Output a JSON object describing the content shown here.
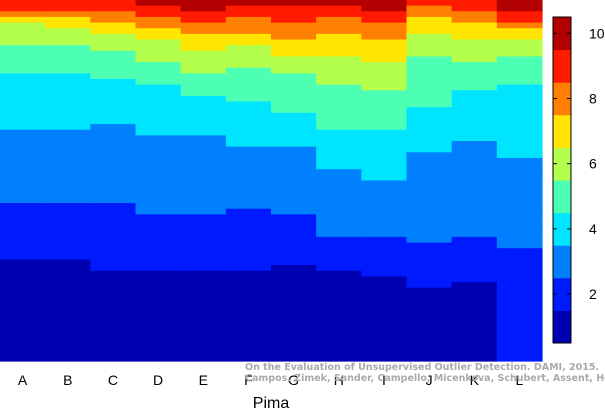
{
  "chart_data": {
    "type": "heatmap",
    "title": "",
    "xlabel": "Pima",
    "ylabel": "",
    "categories": [
      "A",
      "B",
      "C",
      "D",
      "E",
      "F",
      "G",
      "H",
      "I",
      "J",
      "K",
      "L"
    ],
    "colorbar": {
      "min": 0.5,
      "max": 10.5,
      "ticks": [
        2,
        4,
        6,
        8,
        10
      ],
      "colormap": "jet"
    },
    "rows": 64,
    "columns": [
      [
        9,
        9,
        8,
        7,
        6,
        6,
        6,
        6,
        5,
        5,
        5,
        5,
        5,
        4,
        4,
        4,
        4,
        4,
        4,
        4,
        4,
        4,
        4,
        3,
        3,
        3,
        3,
        3,
        3,
        3,
        3,
        3,
        3,
        3,
        3,
        3,
        2,
        2,
        2,
        2,
        2,
        2,
        2,
        2,
        2,
        2,
        1,
        1,
        1,
        1,
        1,
        1,
        1,
        1,
        1,
        1,
        1,
        1,
        1,
        1,
        1,
        1,
        1,
        1
      ],
      [
        9,
        9,
        8,
        7,
        7,
        6,
        6,
        6,
        5,
        5,
        5,
        5,
        5,
        4,
        4,
        4,
        4,
        4,
        4,
        4,
        4,
        4,
        4,
        3,
        3,
        3,
        3,
        3,
        3,
        3,
        3,
        3,
        3,
        3,
        3,
        3,
        2,
        2,
        2,
        2,
        2,
        2,
        2,
        2,
        2,
        2,
        1,
        1,
        1,
        1,
        1,
        1,
        1,
        1,
        1,
        1,
        1,
        1,
        1,
        1,
        1,
        1,
        1,
        1
      ],
      [
        9,
        9,
        8,
        8,
        7,
        7,
        6,
        6,
        6,
        5,
        5,
        5,
        5,
        5,
        4,
        4,
        4,
        4,
        4,
        4,
        4,
        4,
        3,
        3,
        3,
        3,
        3,
        3,
        3,
        3,
        3,
        3,
        3,
        3,
        3,
        3,
        2,
        2,
        2,
        2,
        2,
        2,
        2,
        2,
        2,
        2,
        2,
        2,
        1,
        1,
        1,
        1,
        1,
        1,
        1,
        1,
        1,
        1,
        1,
        1,
        1,
        1,
        1,
        1
      ],
      [
        10,
        9,
        9,
        8,
        8,
        7,
        7,
        6,
        6,
        6,
        6,
        5,
        5,
        5,
        5,
        4,
        4,
        4,
        4,
        4,
        4,
        4,
        4,
        4,
        3,
        3,
        3,
        3,
        3,
        3,
        3,
        3,
        3,
        3,
        3,
        3,
        3,
        3,
        2,
        2,
        2,
        2,
        2,
        2,
        2,
        2,
        2,
        2,
        1,
        1,
        1,
        1,
        1,
        1,
        1,
        1,
        1,
        1,
        1,
        1,
        1,
        1,
        1,
        1
      ],
      [
        10,
        10,
        9,
        9,
        8,
        8,
        7,
        7,
        7,
        6,
        6,
        6,
        6,
        5,
        5,
        5,
        5,
        4,
        4,
        4,
        4,
        4,
        4,
        4,
        3,
        3,
        3,
        3,
        3,
        3,
        3,
        3,
        3,
        3,
        3,
        3,
        3,
        3,
        2,
        2,
        2,
        2,
        2,
        2,
        2,
        2,
        2,
        2,
        1,
        1,
        1,
        1,
        1,
        1,
        1,
        1,
        1,
        1,
        1,
        1,
        1,
        1,
        1,
        1
      ],
      [
        10,
        9,
        9,
        8,
        8,
        8,
        7,
        7,
        6,
        6,
        6,
        6,
        5,
        5,
        5,
        5,
        5,
        5,
        4,
        4,
        4,
        4,
        4,
        4,
        4,
        4,
        3,
        3,
        3,
        3,
        3,
        3,
        3,
        3,
        3,
        3,
        3,
        2,
        2,
        2,
        2,
        2,
        2,
        2,
        2,
        2,
        2,
        2,
        1,
        1,
        1,
        1,
        1,
        1,
        1,
        1,
        1,
        1,
        1,
        1,
        1,
        1,
        1,
        1
      ],
      [
        10,
        9,
        9,
        9,
        8,
        8,
        8,
        7,
        7,
        7,
        6,
        6,
        6,
        5,
        5,
        5,
        5,
        5,
        5,
        5,
        4,
        4,
        4,
        4,
        4,
        4,
        3,
        3,
        3,
        3,
        3,
        3,
        3,
        3,
        3,
        3,
        3,
        3,
        2,
        2,
        2,
        2,
        2,
        2,
        2,
        2,
        2,
        1,
        1,
        1,
        1,
        1,
        1,
        1,
        1,
        1,
        1,
        1,
        1,
        1,
        1,
        1,
        1,
        1
      ],
      [
        10,
        9,
        9,
        8,
        8,
        8,
        7,
        7,
        7,
        7,
        6,
        6,
        6,
        6,
        6,
        5,
        5,
        5,
        5,
        5,
        5,
        5,
        5,
        4,
        4,
        4,
        4,
        4,
        4,
        4,
        3,
        3,
        3,
        3,
        3,
        3,
        3,
        3,
        3,
        3,
        3,
        3,
        2,
        2,
        2,
        2,
        2,
        2,
        1,
        1,
        1,
        1,
        1,
        1,
        1,
        1,
        1,
        1,
        1,
        1,
        1,
        1,
        1,
        1
      ],
      [
        10,
        10,
        9,
        9,
        8,
        8,
        8,
        7,
        7,
        7,
        7,
        6,
        6,
        6,
        6,
        6,
        5,
        5,
        5,
        5,
        5,
        5,
        5,
        4,
        4,
        4,
        4,
        4,
        4,
        4,
        4,
        4,
        3,
        3,
        3,
        3,
        3,
        3,
        3,
        3,
        3,
        3,
        2,
        2,
        2,
        2,
        2,
        2,
        2,
        1,
        1,
        1,
        1,
        1,
        1,
        1,
        1,
        1,
        1,
        1,
        1,
        1,
        1,
        1
      ],
      [
        9,
        8,
        8,
        7,
        7,
        7,
        6,
        6,
        6,
        6,
        5,
        5,
        5,
        5,
        5,
        5,
        5,
        5,
        5,
        4,
        4,
        4,
        4,
        4,
        4,
        4,
        4,
        3,
        3,
        3,
        3,
        3,
        3,
        3,
        3,
        3,
        3,
        3,
        3,
        3,
        3,
        3,
        3,
        2,
        2,
        2,
        2,
        2,
        2,
        2,
        2,
        1,
        1,
        1,
        1,
        1,
        1,
        1,
        1,
        1,
        1,
        1,
        1,
        1
      ],
      [
        9,
        9,
        8,
        8,
        7,
        7,
        7,
        6,
        6,
        6,
        6,
        5,
        5,
        5,
        5,
        5,
        4,
        4,
        4,
        4,
        4,
        4,
        4,
        4,
        4,
        3,
        3,
        3,
        3,
        3,
        3,
        3,
        3,
        3,
        3,
        3,
        3,
        3,
        3,
        3,
        3,
        3,
        2,
        2,
        2,
        2,
        2,
        2,
        2,
        2,
        1,
        1,
        1,
        1,
        1,
        1,
        1,
        1,
        1,
        1,
        1,
        1,
        1,
        1
      ],
      [
        10,
        10,
        9,
        9,
        8,
        7,
        7,
        6,
        6,
        6,
        5,
        5,
        5,
        5,
        5,
        4,
        4,
        4,
        4,
        4,
        4,
        4,
        4,
        4,
        4,
        4,
        4,
        4,
        3,
        3,
        3,
        3,
        3,
        3,
        3,
        3,
        3,
        3,
        3,
        3,
        3,
        3,
        3,
        3,
        2,
        2,
        2,
        2,
        2,
        2,
        2,
        2,
        2,
        2,
        2,
        2,
        2,
        2,
        2,
        2,
        2,
        2,
        2,
        2
      ]
    ]
  },
  "credit": {
    "line1": "On the Evaluation of Unsupervised Outlier Detection. DAMI, 2015.",
    "line2": "Campos, Zimek, Sander, Campello, Micenkova, Schubert, Assent, Houle"
  }
}
